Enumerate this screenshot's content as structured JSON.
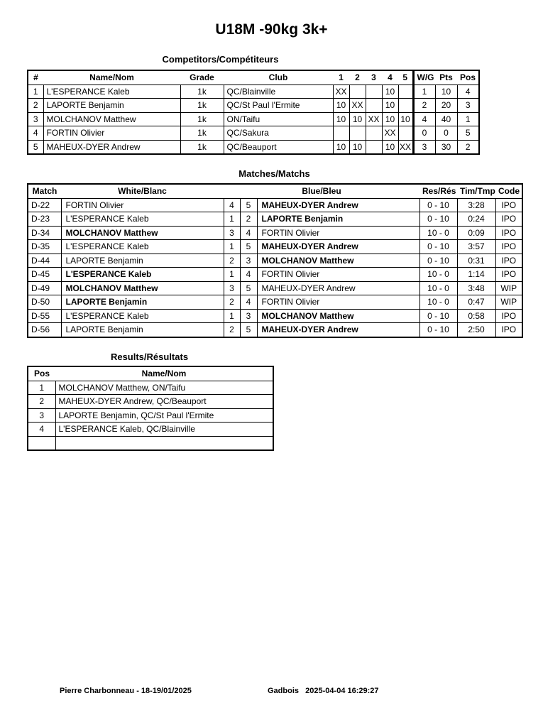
{
  "title": "U18M -90kg 3k+",
  "competitors": {
    "heading": "Competitors/Compétiteurs",
    "headers": [
      "#",
      "Name/Nom",
      "Grade",
      "Club",
      "1",
      "2",
      "3",
      "4",
      "5",
      "W/G",
      "Pts",
      "Pos"
    ],
    "rows": [
      [
        "1",
        "L'ESPERANCE Kaleb",
        "1k",
        "QC/Blainville",
        "XX",
        "",
        "",
        "10",
        "",
        "1",
        "10",
        "4"
      ],
      [
        "2",
        "LAPORTE Benjamin",
        "1k",
        "QC/St Paul l'Ermite",
        "10",
        "XX",
        "",
        "10",
        "",
        "2",
        "20",
        "3"
      ],
      [
        "3",
        "MOLCHANOV Matthew",
        "1k",
        "ON/Taifu",
        "10",
        "10",
        "XX",
        "10",
        "10",
        "4",
        "40",
        "1"
      ],
      [
        "4",
        "FORTIN Olivier",
        "1k",
        "QC/Sakura",
        "",
        "",
        "",
        "XX",
        "",
        "0",
        "0",
        "5"
      ],
      [
        "5",
        "MAHEUX-DYER Andrew",
        "1k",
        "QC/Beauport",
        "10",
        "10",
        "",
        "10",
        "XX",
        "3",
        "30",
        "2"
      ]
    ]
  },
  "matches": {
    "heading": "Matches/Matchs",
    "headers": [
      "Match",
      "White/Blanc",
      "Blue/Bleu",
      "Res/Rés",
      "Tim/Tmp",
      "Code"
    ],
    "rows": [
      {
        "match": "D-22",
        "white": "FORTIN Olivier",
        "wn": "4",
        "bn": "5",
        "blue": "MAHEUX-DYER Andrew",
        "res": "0 - 10",
        "time": "3:28",
        "code": "IPO",
        "winner": "blue"
      },
      {
        "match": "D-23",
        "white": "L'ESPERANCE Kaleb",
        "wn": "1",
        "bn": "2",
        "blue": "LAPORTE Benjamin",
        "res": "0 - 10",
        "time": "0:24",
        "code": "IPO",
        "winner": "blue"
      },
      {
        "match": "D-34",
        "white": "MOLCHANOV Matthew",
        "wn": "3",
        "bn": "4",
        "blue": "FORTIN Olivier",
        "res": "10 - 0",
        "time": "0:09",
        "code": "IPO",
        "winner": "white"
      },
      {
        "match": "D-35",
        "white": "L'ESPERANCE Kaleb",
        "wn": "1",
        "bn": "5",
        "blue": "MAHEUX-DYER Andrew",
        "res": "0 - 10",
        "time": "3:57",
        "code": "IPO",
        "winner": "blue"
      },
      {
        "match": "D-44",
        "white": "LAPORTE Benjamin",
        "wn": "2",
        "bn": "3",
        "blue": "MOLCHANOV Matthew",
        "res": "0 - 10",
        "time": "0:31",
        "code": "IPO",
        "winner": "blue"
      },
      {
        "match": "D-45",
        "white": "L'ESPERANCE Kaleb",
        "wn": "1",
        "bn": "4",
        "blue": "FORTIN Olivier",
        "res": "10 - 0",
        "time": "1:14",
        "code": "IPO",
        "winner": "white"
      },
      {
        "match": "D-49",
        "white": "MOLCHANOV Matthew",
        "wn": "3",
        "bn": "5",
        "blue": "MAHEUX-DYER Andrew",
        "res": "10 - 0",
        "time": "3:48",
        "code": "WIP",
        "winner": "white"
      },
      {
        "match": "D-50",
        "white": "LAPORTE Benjamin",
        "wn": "2",
        "bn": "4",
        "blue": "FORTIN Olivier",
        "res": "10 - 0",
        "time": "0:47",
        "code": "WIP",
        "winner": "white"
      },
      {
        "match": "D-55",
        "white": "L'ESPERANCE Kaleb",
        "wn": "1",
        "bn": "3",
        "blue": "MOLCHANOV Matthew",
        "res": "0 - 10",
        "time": "0:58",
        "code": "IPO",
        "winner": "blue"
      },
      {
        "match": "D-56",
        "white": "LAPORTE Benjamin",
        "wn": "2",
        "bn": "5",
        "blue": "MAHEUX-DYER Andrew",
        "res": "0 - 10",
        "time": "2:50",
        "code": "IPO",
        "winner": "blue"
      }
    ]
  },
  "results": {
    "heading": "Results/Résultats",
    "headers": [
      "Pos",
      "Name/Nom"
    ],
    "rows": [
      [
        "1",
        "MOLCHANOV Matthew, ON/Taifu"
      ],
      [
        "2",
        "MAHEUX-DYER Andrew, QC/Beauport"
      ],
      [
        "3",
        "LAPORTE Benjamin, QC/St Paul l'Ermite"
      ],
      [
        "4",
        "L'ESPERANCE Kaleb, QC/Blainville"
      ],
      [
        "",
        ""
      ]
    ]
  },
  "footer": {
    "left": "Pierre Charbonneau - 18-19/01/2025",
    "center": "Gadbois   2025-04-04 16:29:27"
  }
}
